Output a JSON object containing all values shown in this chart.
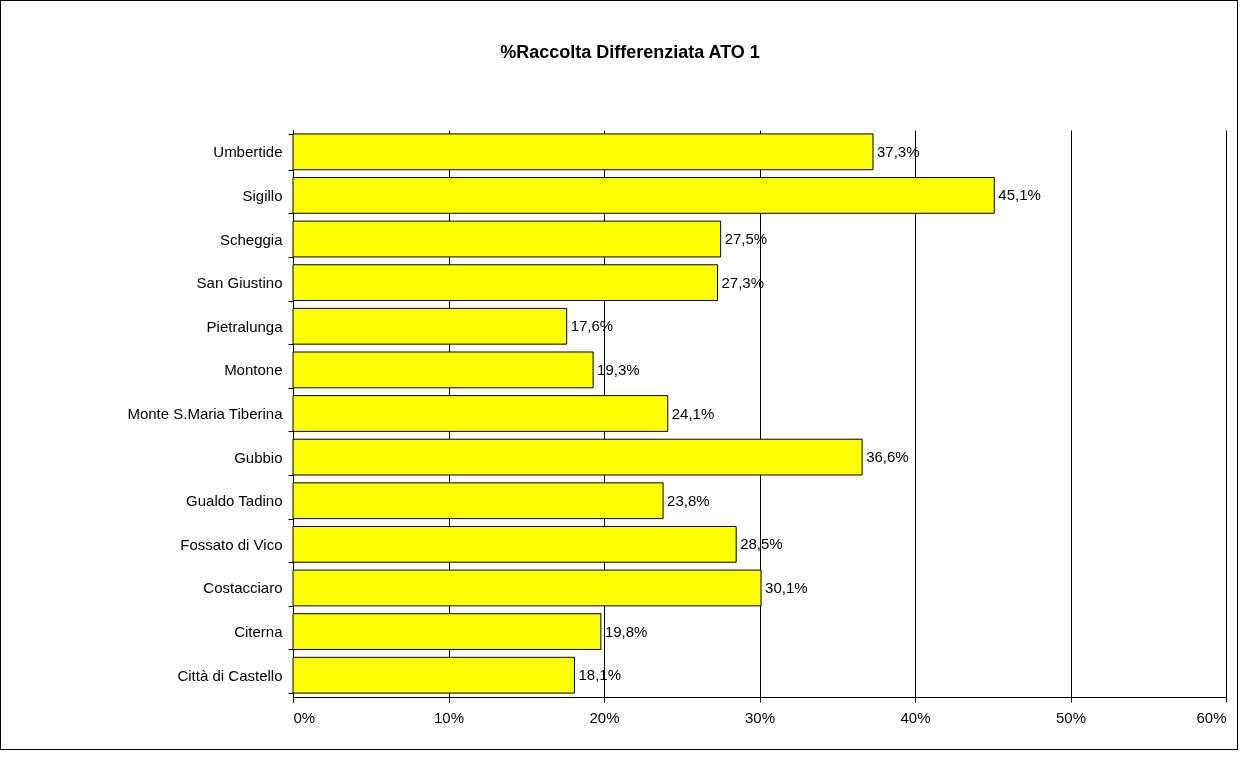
{
  "chart_data": {
    "type": "bar",
    "orientation": "horizontal",
    "title": "%Raccolta Differenziata ATO 1",
    "categories": [
      "Umbertide",
      "Sigillo",
      "Scheggia",
      "San Giustino",
      "Pietralunga",
      "Montone",
      "Monte S.Maria Tiberina",
      "Gubbio",
      "Gualdo Tadino",
      "Fossato di Vico",
      "Costacciaro",
      "Citerna",
      "Città di Castello"
    ],
    "values": [
      37.3,
      45.1,
      27.5,
      27.3,
      17.6,
      19.3,
      24.1,
      36.6,
      23.8,
      28.5,
      30.1,
      19.8,
      18.1
    ],
    "value_labels": [
      "37,3%",
      "45,1%",
      "27,5%",
      "27,3%",
      "17,6%",
      "19,3%",
      "24,1%",
      "36,6%",
      "23,8%",
      "28,5%",
      "30,1%",
      "19,8%",
      "18,1%"
    ],
    "color": "#ffff00",
    "xlim": [
      0,
      60
    ],
    "xticks": [
      {
        "value": 0,
        "label": "0%"
      },
      {
        "value": 10,
        "label": "10%"
      },
      {
        "value": 20,
        "label": "20%"
      },
      {
        "value": 30,
        "label": "30%"
      },
      {
        "value": 40,
        "label": "40%"
      },
      {
        "value": 50,
        "label": "50%"
      },
      {
        "value": 60,
        "label": "60%"
      }
    ],
    "grid": "x"
  }
}
